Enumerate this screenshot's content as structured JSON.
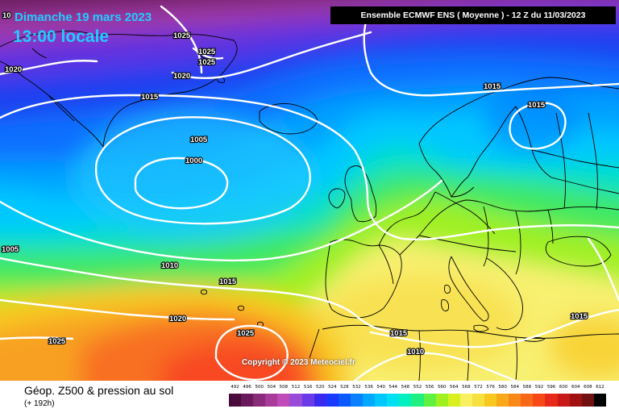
{
  "header": {
    "date": "Dimanche 19 mars 2023",
    "time": "13:00 locale",
    "model": "Ensemble ECMWF ENS  ( Moyenne )  -  12 Z du 11/03/2023"
  },
  "copyright": "Copyright © 2023 Meteociel.fr",
  "footer": {
    "label": "Géop. Z500 & pression au sol",
    "forecast": "(+ 192h)"
  },
  "isobars": {
    "l01": "1025",
    "l02": "1025",
    "l03": "1025",
    "l04": "1020",
    "l05": "1020",
    "l06": "1015",
    "l07": "1015",
    "l08": "1015",
    "l09": "1005",
    "l10": "1000",
    "l11": "1005",
    "l12": "1010",
    "l13": "1015",
    "l14": "1020",
    "l15": "1025",
    "l16": "1025",
    "l17": "1015",
    "l18": "1010",
    "l19": "1015",
    "l20": "10"
  },
  "scale": {
    "labels": [
      "492",
      "496",
      "500",
      "504",
      "508",
      "512",
      "516",
      "520",
      "524",
      "528",
      "532",
      "536",
      "540",
      "544",
      "548",
      "552",
      "556",
      "560",
      "564",
      "568",
      "572",
      "576",
      "580",
      "584",
      "588",
      "592",
      "596",
      "600",
      "604",
      "608",
      "612"
    ],
    "colors": [
      "#4b0a3c",
      "#6a1a5a",
      "#8a2a7a",
      "#a83a9a",
      "#c04ab8",
      "#9a4ad8",
      "#6a3ae8",
      "#3a2af0",
      "#1a3aff",
      "#0a5aff",
      "#0a80ff",
      "#00a8ff",
      "#00c8ff",
      "#00e0f0",
      "#00f0c0",
      "#20f080",
      "#60f040",
      "#a0f020",
      "#d8f020",
      "#f8f060",
      "#f8e040",
      "#f8c820",
      "#f8a818",
      "#f88818",
      "#f86818",
      "#f84818",
      "#e82818",
      "#c81818",
      "#a01010",
      "#701010",
      "#000000"
    ]
  },
  "colors": {
    "accent_cyan": "#22ccff",
    "isobar": "#ffffff",
    "coast": "#000000"
  }
}
